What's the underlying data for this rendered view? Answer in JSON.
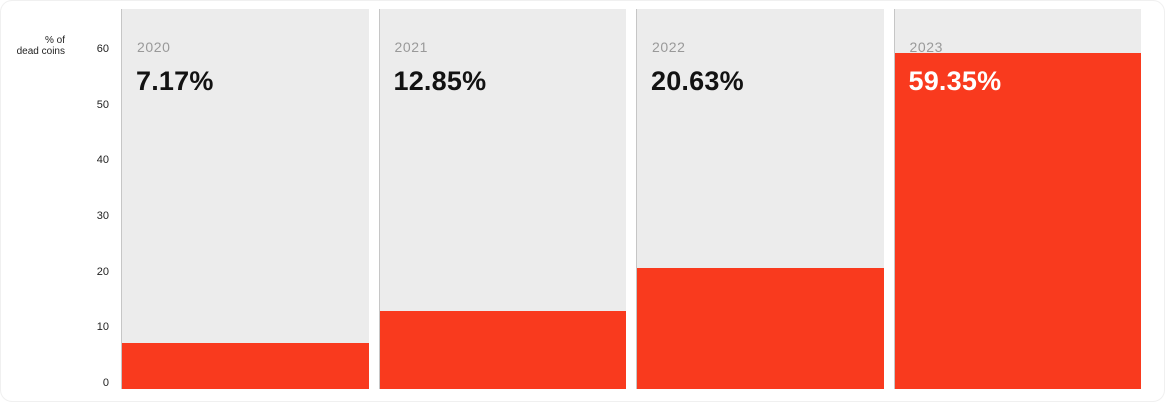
{
  "chart_data": {
    "type": "bar",
    "title": "",
    "ylabel": "% of dead coins",
    "ylabel_lines": [
      "% of",
      "dead coins"
    ],
    "xlabel": "",
    "ylim": [
      0,
      60
    ],
    "ytick_values": [
      0,
      10,
      20,
      30,
      40,
      50,
      60
    ],
    "grid": "off",
    "legend_position": "none",
    "categories": [
      "2020",
      "2021",
      "2022",
      "2023"
    ],
    "values": [
      7.17,
      12.85,
      20.63,
      59.35
    ],
    "bars": [
      {
        "year": "2020",
        "value": 7.17,
        "label": "7.17%",
        "label_color": "#121212"
      },
      {
        "year": "2021",
        "value": 12.85,
        "label": "12.85%",
        "label_color": "#121212"
      },
      {
        "year": "2022",
        "value": 20.63,
        "label": "20.63%",
        "label_color": "#121212"
      },
      {
        "year": "2023",
        "value": 59.35,
        "label": "59.35%",
        "label_color": "#ffffff"
      }
    ],
    "colors": {
      "bar": "#f93a1e",
      "panel_background": "#ececec",
      "axis_line": "#c6c6c6",
      "year_label": "#999999",
      "tick_label": "#222222",
      "page_background": "#ffffff"
    }
  }
}
